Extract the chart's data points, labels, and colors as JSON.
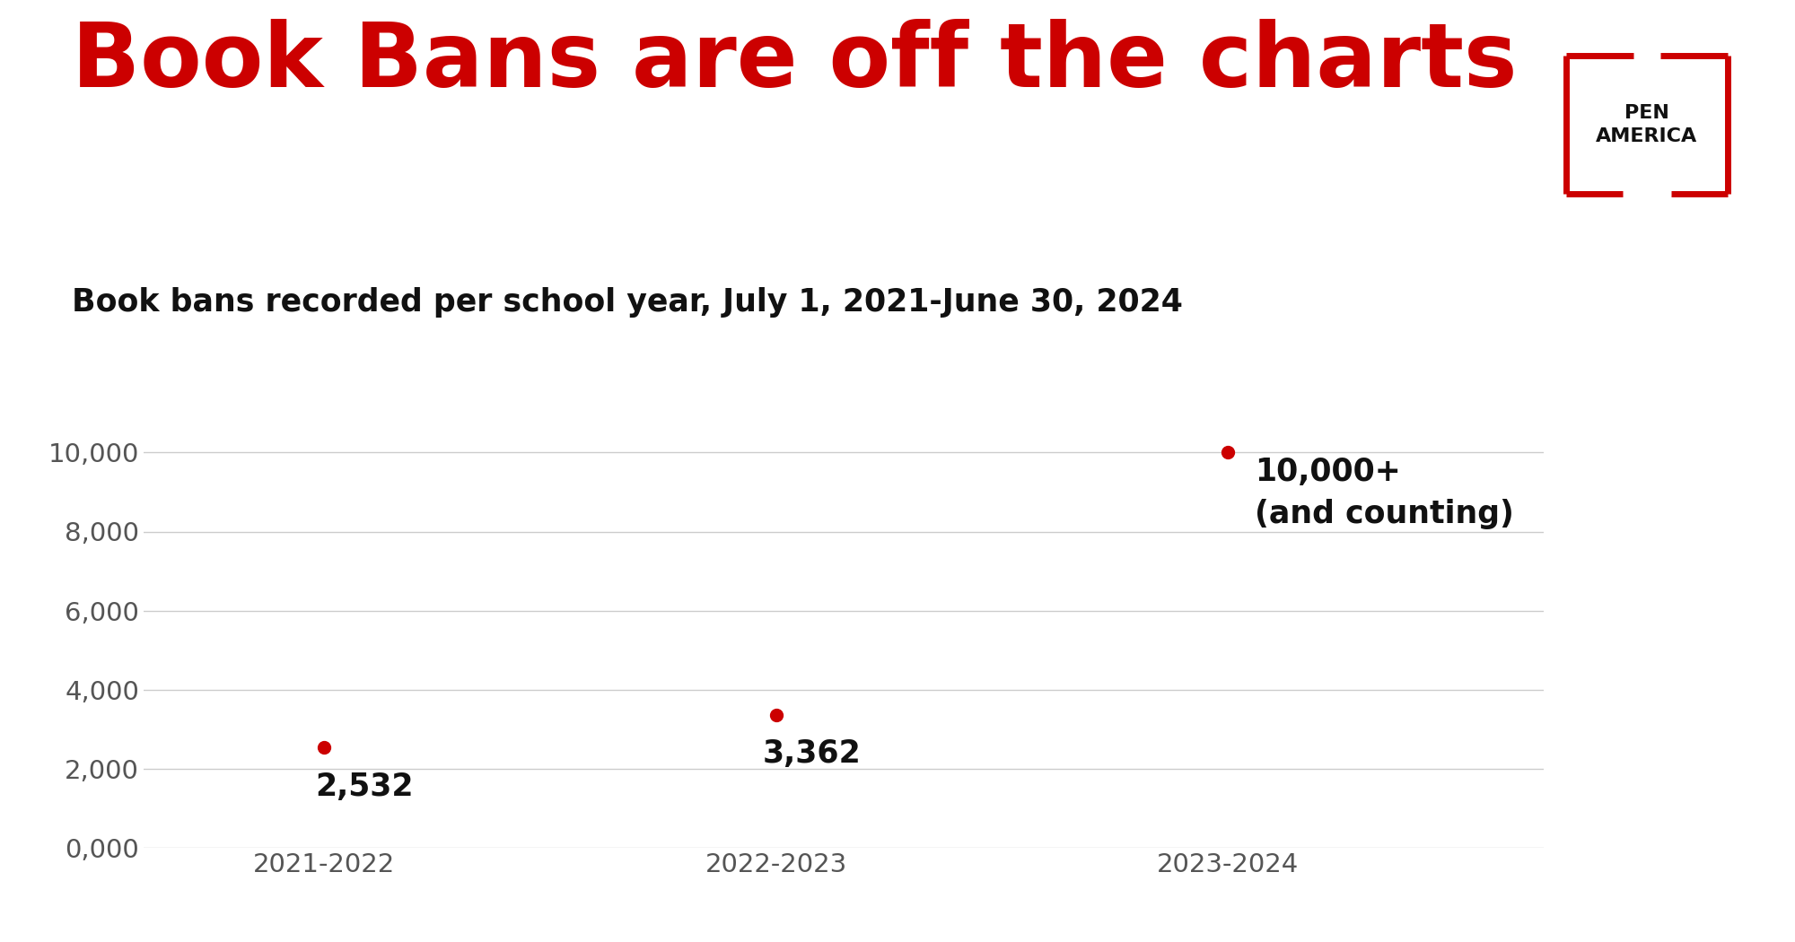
{
  "title": "Book Bans are off the charts",
  "subtitle": "Book bans recorded per school year, July 1, 2021-June 30, 2024",
  "categories": [
    "2021-2022",
    "2022-2023",
    "2023-2024"
  ],
  "values": [
    2532,
    3362,
    10000
  ],
  "label_0": "2,532",
  "label_1": "3,362",
  "label_2": "10,000+\n(and counting)",
  "title_color": "#cc0000",
  "subtitle_color": "#111111",
  "dot_color": "#cc0000",
  "label_color": "#111111",
  "background_color": "#ffffff",
  "grid_color": "#cccccc",
  "yticks": [
    0,
    2000,
    4000,
    6000,
    8000,
    10000
  ],
  "ytick_labels": [
    "0,000",
    "2,000",
    "4,000",
    "6,000",
    "8,000",
    "10,000"
  ],
  "ylim": [
    0,
    11200
  ],
  "title_fontsize": 72,
  "subtitle_fontsize": 25,
  "tick_fontsize": 21,
  "label_fontsize": 25,
  "pen_america_text": "PEN\nAMERICA",
  "pen_box_color": "#cc0000",
  "pen_text_color": "#111111"
}
